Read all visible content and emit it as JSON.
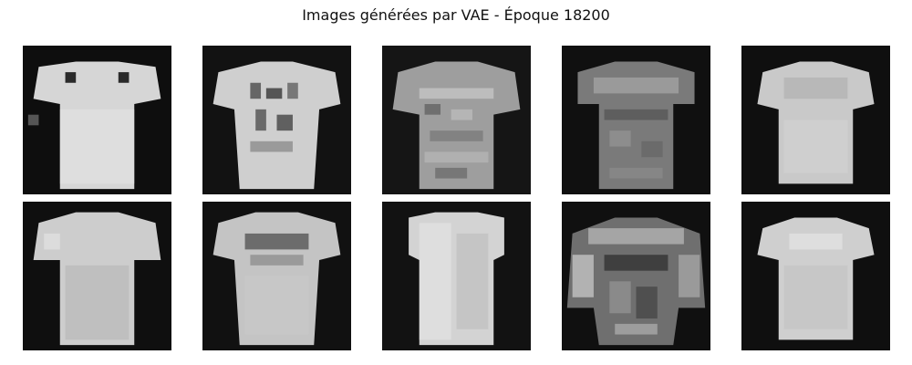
{
  "figure": {
    "title": "Images générées par VAE - Époque 18200"
  },
  "images": [
    {
      "name": "generated-image-1",
      "subject": "t-shirt",
      "tone": "light",
      "row": 0,
      "col": 0
    },
    {
      "name": "generated-image-2",
      "subject": "t-shirt",
      "tone": "light-patterned",
      "row": 0,
      "col": 1
    },
    {
      "name": "generated-image-3",
      "subject": "t-shirt",
      "tone": "mid-textured",
      "row": 0,
      "col": 2
    },
    {
      "name": "generated-image-4",
      "subject": "t-shirt",
      "tone": "dark-textured",
      "row": 0,
      "col": 3
    },
    {
      "name": "generated-image-5",
      "subject": "t-shirt",
      "tone": "light",
      "row": 0,
      "col": 4
    },
    {
      "name": "generated-image-6",
      "subject": "t-shirt",
      "tone": "light",
      "row": 1,
      "col": 0
    },
    {
      "name": "generated-image-7",
      "subject": "t-shirt",
      "tone": "light-patterned",
      "row": 1,
      "col": 1
    },
    {
      "name": "generated-image-8",
      "subject": "shirt",
      "tone": "light",
      "row": 1,
      "col": 2
    },
    {
      "name": "generated-image-9",
      "subject": "garment",
      "tone": "dark-noisy",
      "row": 1,
      "col": 3
    },
    {
      "name": "generated-image-10",
      "subject": "t-shirt",
      "tone": "light",
      "row": 1,
      "col": 4
    }
  ]
}
